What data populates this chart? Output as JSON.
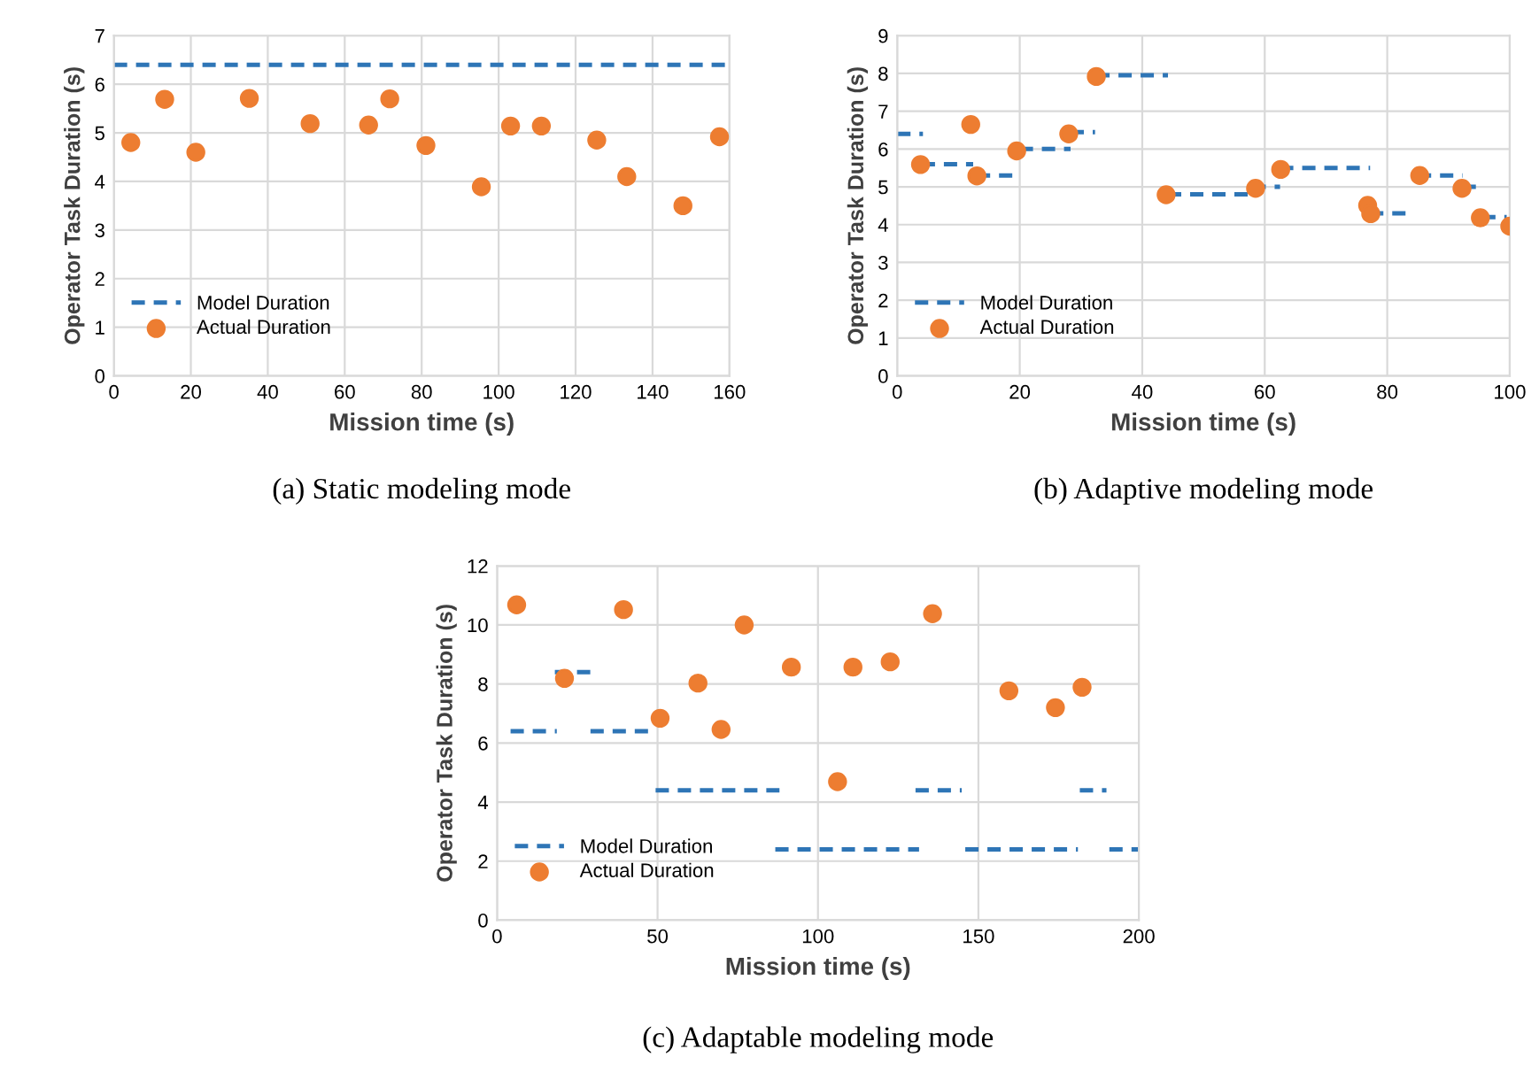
{
  "chart_data": [
    {
      "type": "scatter",
      "title": "(a) Static modeling mode",
      "xlabel": "Mission time (s)",
      "ylabel": "Operator Task Duration (s)",
      "xlim": [
        0,
        160
      ],
      "xticks": [
        0,
        20,
        40,
        60,
        80,
        100,
        120,
        140,
        160
      ],
      "ylim": [
        0,
        7
      ],
      "yticks": [
        0,
        1,
        2,
        3,
        4,
        5,
        6,
        7
      ],
      "grid": true,
      "legend": "bottom left",
      "series": [
        {
          "name": "Model Duration",
          "type": "line",
          "line_style": "dashed",
          "marker": "none",
          "color": "#2e75b6",
          "x": [
            0,
            160
          ],
          "values": [
            6.4,
            6.4
          ]
        },
        {
          "name": "Actual Duration",
          "marker": "circle",
          "color": "#ed7d31",
          "x": [
            4.4,
            13.2,
            21.3,
            35.2,
            51.0,
            66.2,
            71.7,
            81.1,
            95.5,
            103.1,
            111.1,
            125.5,
            133.3,
            147.9,
            157.4
          ],
          "values": [
            4.8,
            5.69,
            4.6,
            5.71,
            5.19,
            5.16,
            5.7,
            4.74,
            3.89,
            5.14,
            5.14,
            4.85,
            4.1,
            3.5,
            4.92
          ]
        }
      ]
    },
    {
      "type": "scatter",
      "title": "(b) Adaptive modeling mode",
      "xlabel": "Mission time (s)",
      "ylabel": "Operator Task Duration (s)",
      "xlim": [
        0,
        100
      ],
      "xticks": [
        0,
        20,
        40,
        60,
        80,
        100
      ],
      "ylim": [
        0,
        9
      ],
      "yticks": [
        0,
        1,
        2,
        3,
        4,
        5,
        6,
        7,
        8,
        9
      ],
      "grid": true,
      "legend": "bottom left",
      "series": [
        {
          "name": "Model Duration",
          "type": "line",
          "line_style": "dashed",
          "marker": "none",
          "color": "#2e75b6",
          "x": [
            0,
            4.2,
            null,
            4,
            12.4,
            null,
            13,
            19.9,
            null,
            20,
            28.3,
            null,
            28.3,
            32.3,
            null,
            32.5,
            44.2,
            null,
            44.2,
            58,
            null,
            58,
            62.5,
            null,
            62.5,
            77.2,
            null,
            77.2,
            84.1,
            null,
            85,
            92.3,
            null,
            92.3,
            95.5,
            null,
            95.5,
            99.5
          ],
          "values": [
            6.4,
            6.4,
            null,
            5.6,
            5.6,
            null,
            5.3,
            5.3,
            null,
            6.0,
            6.0,
            null,
            6.45,
            6.45,
            null,
            7.95,
            7.95,
            null,
            4.8,
            4.8,
            null,
            5.0,
            5.0,
            null,
            5.5,
            5.5,
            null,
            4.3,
            4.3,
            null,
            5.3,
            5.3,
            null,
            5.0,
            5.0,
            null,
            4.2,
            4.2
          ]
        },
        {
          "name": "Actual Duration",
          "marker": "circle",
          "color": "#ed7d31",
          "x": [
            3.8,
            12.0,
            13.0,
            19.5,
            28.0,
            32.5,
            43.9,
            58.5,
            62.6,
            76.8,
            77.3,
            85.3,
            92.2,
            95.2,
            100
          ],
          "values": [
            5.59,
            6.65,
            5.29,
            5.95,
            6.4,
            7.92,
            4.79,
            4.96,
            5.46,
            4.51,
            4.29,
            5.3,
            4.96,
            4.18,
            3.96
          ]
        }
      ]
    },
    {
      "type": "scatter",
      "title": "(c) Adaptable modeling mode",
      "xlabel": "Mission time (s)",
      "ylabel": "Operator Task Duration (s)",
      "xlim": [
        0,
        200
      ],
      "xticks": [
        0,
        50,
        100,
        150,
        200
      ],
      "ylim": [
        0,
        12
      ],
      "yticks": [
        0,
        2,
        4,
        6,
        8,
        10,
        12
      ],
      "grid": true,
      "legend": "bottom left",
      "series": [
        {
          "name": "Model Duration",
          "type": "line",
          "line_style": "dashed",
          "marker": "none",
          "color": "#2e75b6",
          "x": [
            4.2,
            18.6,
            null,
            18,
            30,
            null,
            29.1,
            48.4,
            null,
            49.4,
            88,
            null,
            86.7,
            131.5,
            null,
            130.4,
            144.8,
            null,
            145.9,
            181,
            null,
            181.6,
            189.9,
            null,
            190.8,
            200
          ],
          "values": [
            6.4,
            6.4,
            null,
            8.4,
            8.4,
            null,
            6.4,
            6.4,
            null,
            4.4,
            4.4,
            null,
            2.4,
            2.4,
            null,
            4.4,
            4.4,
            null,
            2.4,
            2.4,
            null,
            4.4,
            4.4,
            null,
            2.4,
            2.4
          ]
        },
        {
          "name": "Actual Duration",
          "marker": "circle",
          "color": "#ed7d31",
          "x": [
            6.1,
            21.0,
            39.4,
            50.8,
            62.6,
            69.8,
            77.0,
            91.7,
            106.1,
            110.9,
            122.5,
            135.7,
            159.5,
            174.0,
            182.3
          ],
          "values": [
            10.68,
            8.19,
            10.52,
            6.84,
            8.03,
            6.46,
            10.0,
            8.57,
            4.69,
            8.57,
            8.75,
            10.38,
            7.77,
            7.2,
            7.89
          ]
        }
      ]
    }
  ]
}
